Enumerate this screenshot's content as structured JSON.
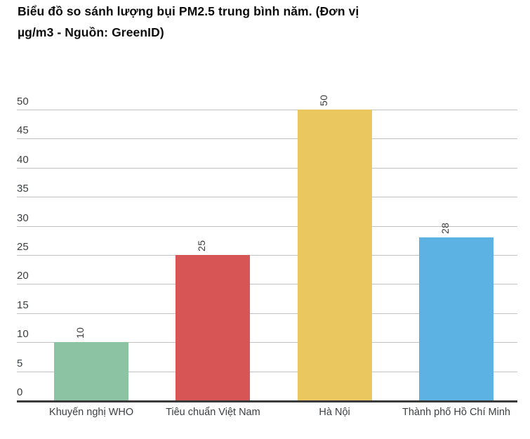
{
  "page": {
    "background": "#ffffff"
  },
  "ui": {
    "title_lines": [
      "Biểu đồ so sánh lượng bụi PM2.5 trung bình năm. (Đơn vị",
      "µg/m3 - Nguồn: GreenID)"
    ]
  },
  "chart_data": {
    "type": "bar",
    "title": "Biểu đồ so sánh lượng bụi PM2.5 trung bình năm. (Đơn vị µg/m3 - Nguồn: GreenID)",
    "unit": "µg/m3",
    "source": "GreenID",
    "categories": [
      "Khuyến nghị WHO",
      "Tiêu chuẩn Việt Nam",
      "Hà Nội",
      "Thành phố Hồ Chí Minh"
    ],
    "values": [
      10,
      25,
      50,
      28
    ],
    "value_labels": [
      "10",
      "25",
      "50",
      "28"
    ],
    "value_label_style": "rotated -90deg above bar",
    "bar_colors": [
      "#8cc3a3",
      "#d85555",
      "#ebc75f",
      "#5bb2e3"
    ],
    "yticks": [
      0,
      5,
      10,
      15,
      20,
      25,
      30,
      35,
      40,
      45,
      50
    ],
    "ylim": [
      0,
      50
    ],
    "ytick_step": 5,
    "grid": true,
    "legend": false,
    "xlabel": "",
    "ylabel": "",
    "colors": {
      "gridline": "#c3c3c3",
      "axis_line": "#3a3a3a",
      "axis_text": "#3c4043",
      "value_label_text": "#3d3d3d",
      "title_text": "#0d0d0d"
    }
  }
}
